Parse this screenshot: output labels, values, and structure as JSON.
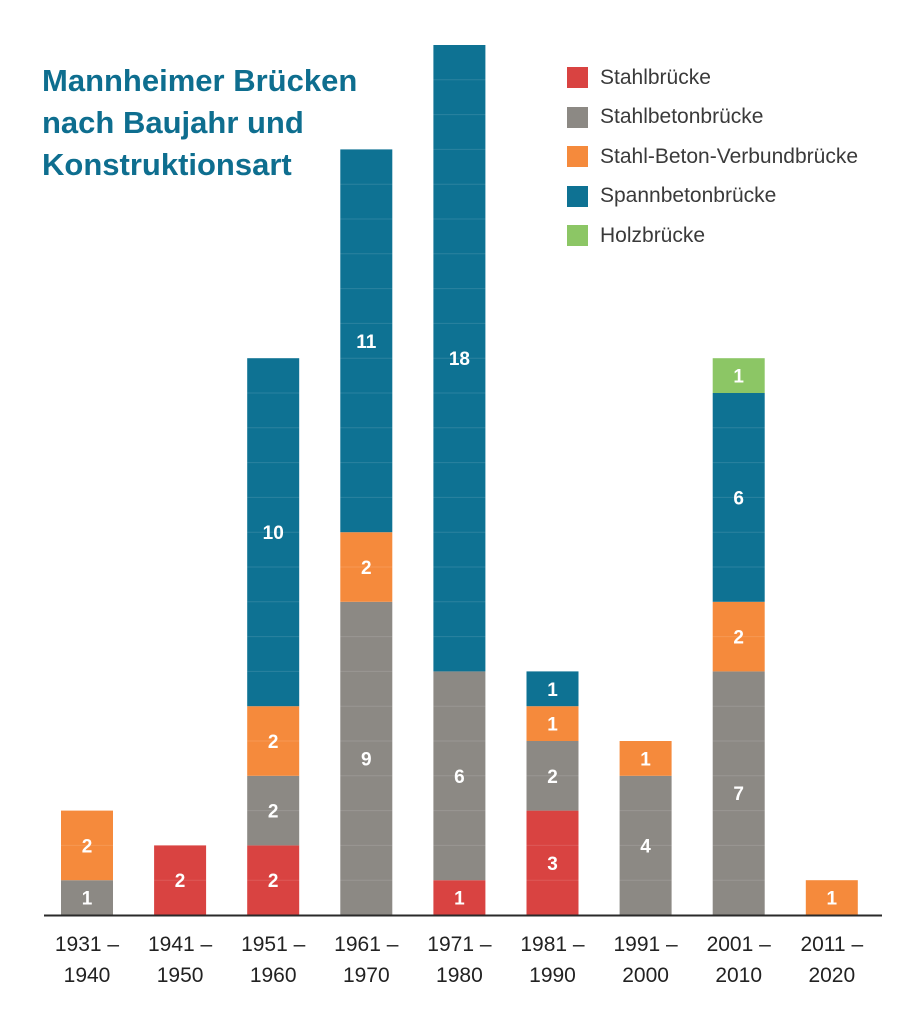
{
  "chart_data": {
    "type": "bar",
    "stacked": true,
    "title": "Mannheimer Brücken nach Baujahr und Konstruktionsart",
    "categories": [
      [
        "1931 –",
        "1940"
      ],
      [
        "1941 –",
        "1950"
      ],
      [
        "1951 –",
        "1960"
      ],
      [
        "1961 –",
        "1970"
      ],
      [
        "1971 –",
        "1980"
      ],
      [
        "1981 –",
        "1990"
      ],
      [
        "1991 –",
        "2000"
      ],
      [
        "2001 –",
        "2010"
      ],
      [
        "2011 –",
        "2020"
      ]
    ],
    "series": [
      {
        "name": "Stahlbrücke",
        "color": "#d94341",
        "values": [
          0,
          2,
          2,
          0,
          1,
          3,
          0,
          0,
          0
        ]
      },
      {
        "name": "Stahlbetonbrücke",
        "color": "#8c8984",
        "values": [
          1,
          0,
          2,
          9,
          6,
          2,
          4,
          7,
          0
        ]
      },
      {
        "name": "Stahl-Beton-Verbundbrücke",
        "color": "#f58a3c",
        "values": [
          2,
          0,
          2,
          2,
          0,
          1,
          1,
          2,
          1
        ]
      },
      {
        "name": "Spannbetonbrücke",
        "color": "#0e7293",
        "values": [
          0,
          0,
          10,
          11,
          18,
          1,
          0,
          6,
          0
        ]
      },
      {
        "name": "Holzbrücke",
        "color": "#8cc665",
        "values": [
          0,
          0,
          0,
          0,
          0,
          0,
          0,
          1,
          0
        ]
      }
    ],
    "legend_position": "top-right",
    "axes_visible": false,
    "grid": false
  }
}
